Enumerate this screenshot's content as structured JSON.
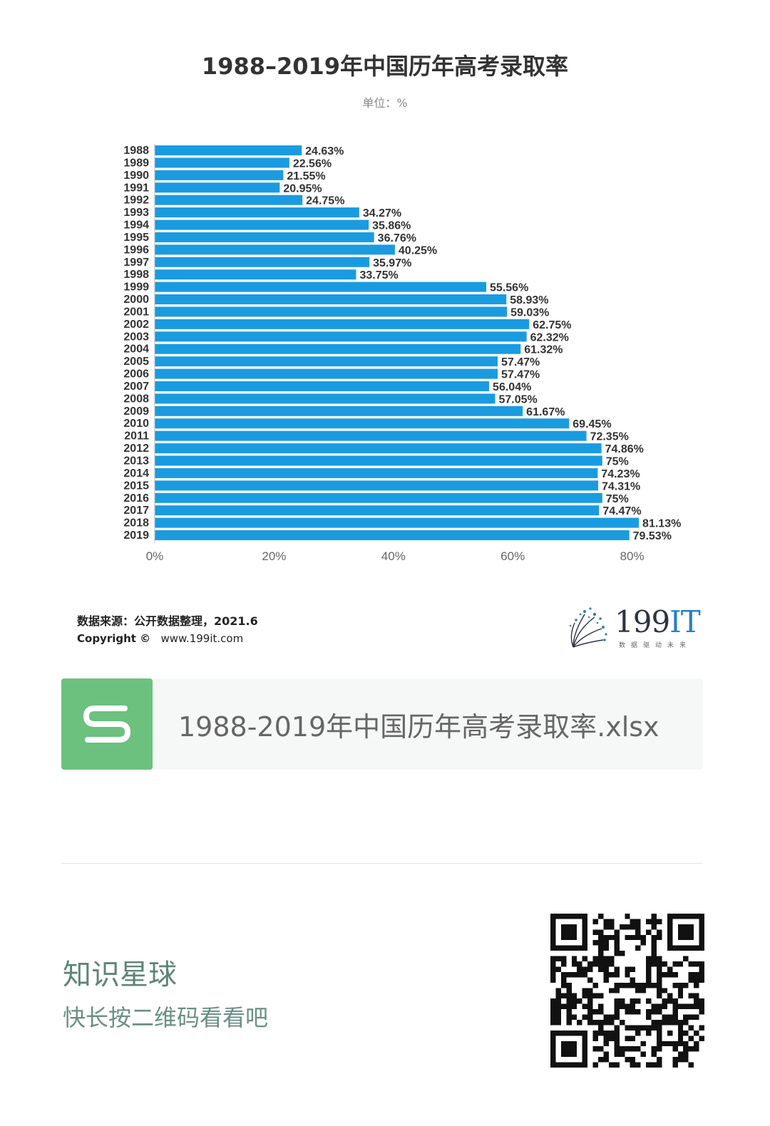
{
  "chart_data": {
    "type": "bar",
    "orientation": "horizontal",
    "title": "1988–2019年中国历年高考录取率",
    "unit_label": "单位：%",
    "categories": [
      "1988",
      "1989",
      "1990",
      "1991",
      "1992",
      "1993",
      "1994",
      "1995",
      "1996",
      "1997",
      "1998",
      "1999",
      "2000",
      "2001",
      "2002",
      "2003",
      "2004",
      "2005",
      "2006",
      "2007",
      "2008",
      "2009",
      "2010",
      "2011",
      "2012",
      "2013",
      "2014",
      "2015",
      "2016",
      "2017",
      "2018",
      "2019"
    ],
    "values": [
      24.63,
      22.56,
      21.55,
      20.95,
      24.75,
      34.27,
      35.86,
      36.76,
      40.25,
      35.97,
      33.75,
      55.56,
      58.93,
      59.03,
      62.75,
      62.32,
      61.32,
      57.47,
      57.47,
      56.04,
      57.05,
      61.67,
      69.45,
      72.35,
      74.86,
      75,
      74.23,
      74.31,
      75,
      74.47,
      81.13,
      79.53
    ],
    "value_labels": [
      "24.63%",
      "22.56%",
      "21.55%",
      "20.95%",
      "24.75%",
      "34.27%",
      "35.86%",
      "36.76%",
      "40.25%",
      "35.97%",
      "33.75%",
      "55.56%",
      "58.93%",
      "59.03%",
      "62.75%",
      "62.32%",
      "61.32%",
      "57.47%",
      "57.47%",
      "56.04%",
      "57.05%",
      "61.67%",
      "69.45%",
      "72.35%",
      "74.86%",
      "75%",
      "74.23%",
      "74.31%",
      "75%",
      "74.47%",
      "81.13%",
      "79.53%"
    ],
    "x_ticks": [
      "0%",
      "20%",
      "40%",
      "60%",
      "80%"
    ],
    "x_tick_values": [
      0,
      20,
      40,
      60,
      80
    ],
    "xlim": [
      0,
      80
    ],
    "bar_color": "#1a9be0",
    "grid": false,
    "legend": "none"
  },
  "source": {
    "text": "数据来源：公开数据整理，2021.6",
    "copyright_label": "Copyright ©",
    "url": "www.199it.com"
  },
  "logo": {
    "name": "199IT",
    "main": "199",
    "accent": "IT",
    "tagline": "数据驱动未来",
    "icon": "dandelion-logo-icon"
  },
  "file": {
    "icon_letter": "S",
    "icon": "spreadsheet-icon",
    "name": "1988-2019年中国历年高考录取率.xlsx",
    "icon_color": "#6cc17f"
  },
  "footer": {
    "title": "知识星球",
    "subtitle": "快长按二维码看看吧"
  },
  "qr": {
    "icon": "qr-code-icon"
  }
}
